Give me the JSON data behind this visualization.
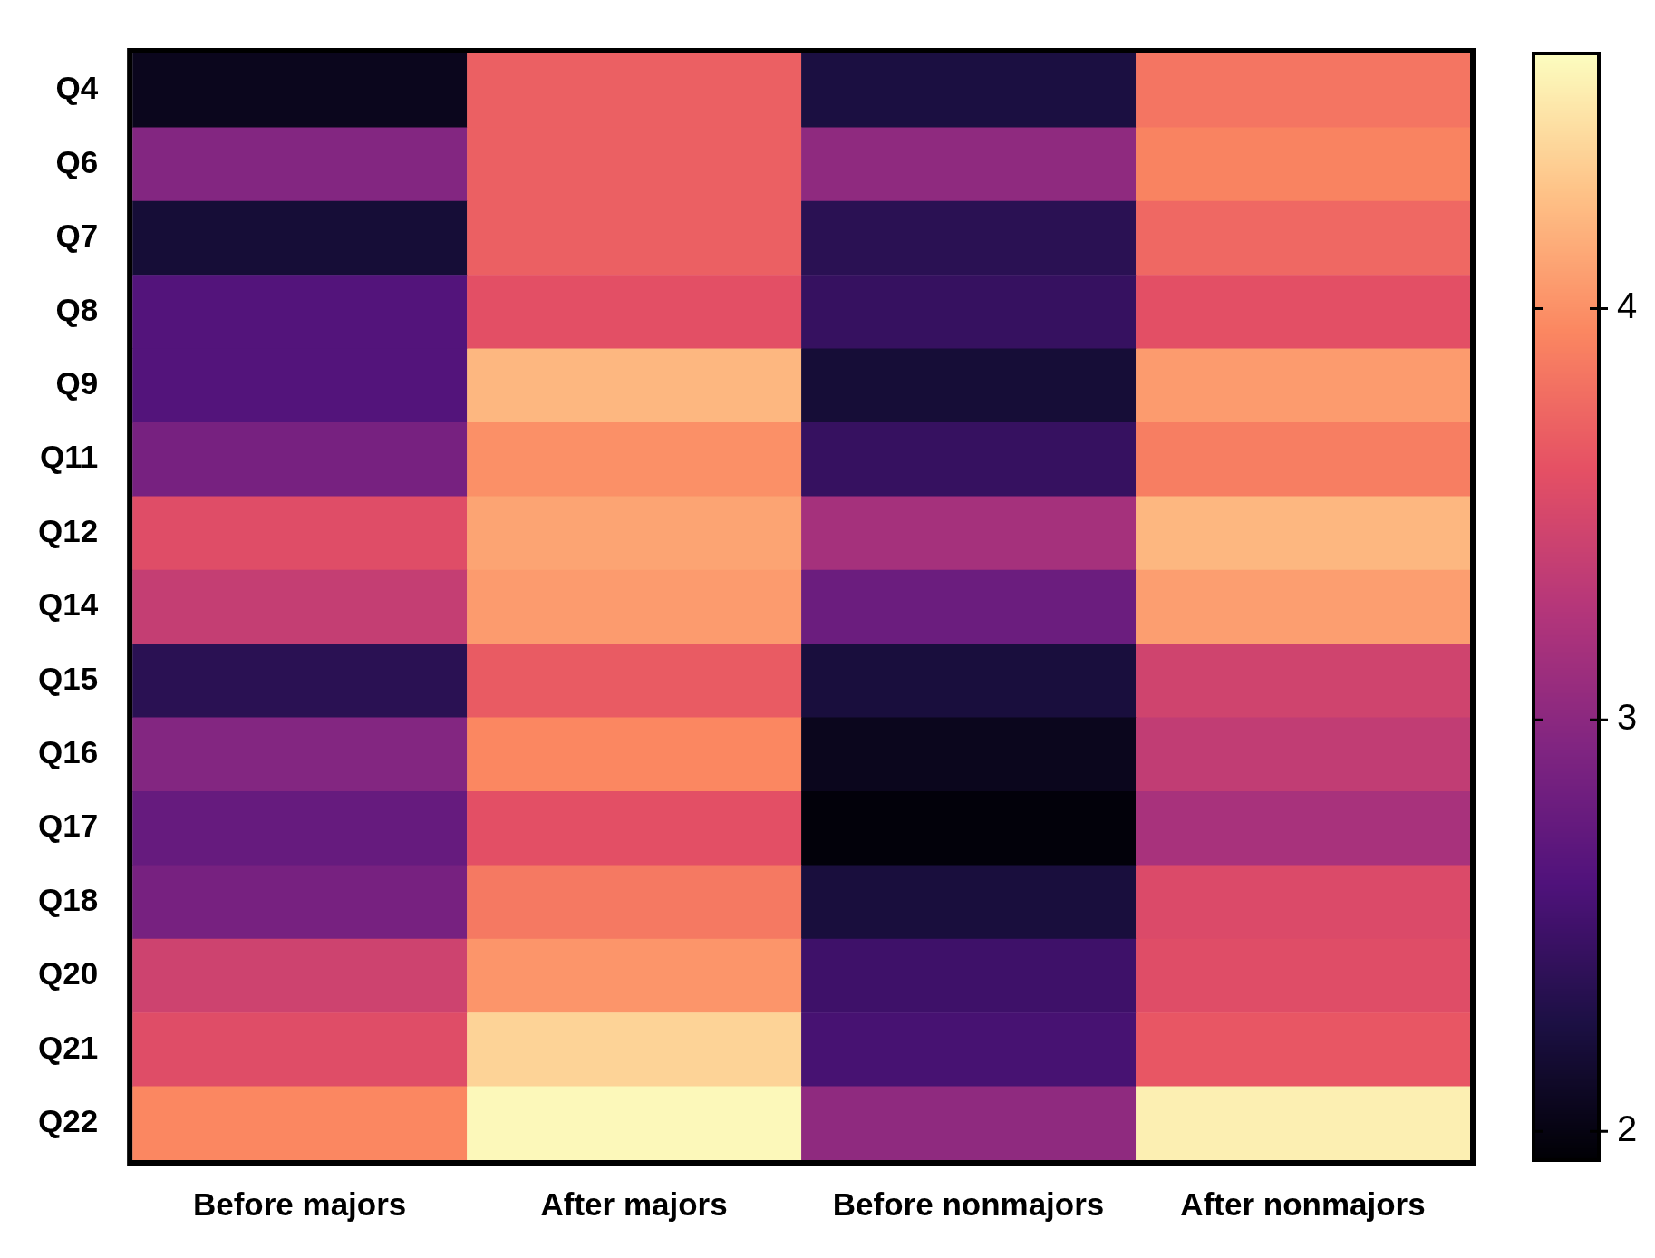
{
  "chart_data": {
    "type": "heatmap",
    "categories": [
      "Before majors",
      "After majors",
      "Before nonmajors",
      "After nonmajors"
    ],
    "y_categories": [
      "Q4",
      "Q6",
      "Q7",
      "Q8",
      "Q9",
      "Q11",
      "Q12",
      "Q14",
      "Q15",
      "Q16",
      "Q17",
      "Q18",
      "Q20",
      "Q21",
      "Q22"
    ],
    "cells": [
      [
        2.06,
        3.71,
        2.25,
        3.84
      ],
      [
        2.95,
        3.71,
        3.03,
        3.92
      ],
      [
        2.2,
        3.71,
        2.36,
        3.76
      ],
      [
        2.63,
        3.6,
        2.44,
        3.6
      ],
      [
        2.63,
        4.22,
        2.2,
        4.06
      ],
      [
        2.87,
        4.0,
        2.44,
        3.89
      ],
      [
        3.57,
        4.11,
        3.17,
        4.22
      ],
      [
        3.38,
        4.06,
        2.79,
        4.08
      ],
      [
        2.36,
        3.68,
        2.23,
        3.46
      ],
      [
        2.95,
        3.95,
        2.06,
        3.36
      ],
      [
        2.76,
        3.6,
        1.96,
        3.19
      ],
      [
        2.87,
        3.86,
        2.23,
        3.54
      ],
      [
        3.44,
        4.03,
        2.49,
        3.57
      ],
      [
        3.57,
        4.38,
        2.55,
        3.65
      ],
      [
        3.95,
        4.59,
        3.03,
        4.54
      ]
    ],
    "clim": [
      1.93,
      4.62
    ],
    "cticks": [
      2,
      3,
      4
    ]
  }
}
